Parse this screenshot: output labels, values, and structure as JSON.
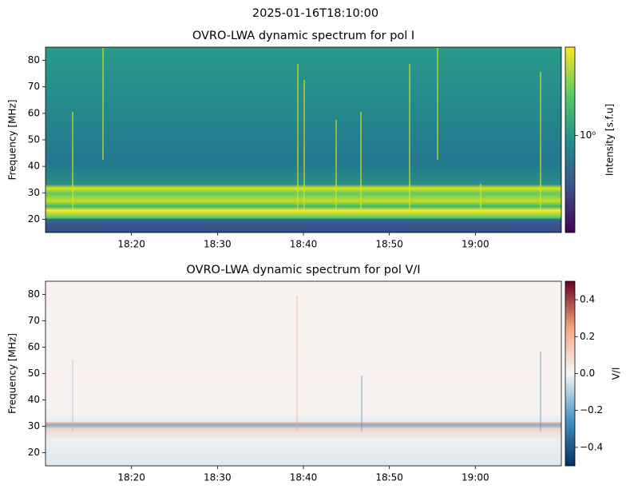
{
  "title": "2025-01-16T18:10:00",
  "chart_data": [
    {
      "type": "heatmap",
      "title": "OVRO-LWA dynamic spectrum for pol I",
      "ylabel": "Frequency [MHz]",
      "xlim": [
        "18:10",
        "19:10"
      ],
      "xticks": [
        "18:20",
        "18:30",
        "18:40",
        "18:50",
        "19:00"
      ],
      "ylim": [
        15,
        85
      ],
      "yticks": [
        20,
        30,
        40,
        50,
        60,
        70,
        80
      ],
      "colorbar": {
        "label": "Intensity [s.f.u]",
        "scale": "log",
        "lim": [
          0.3,
          3
        ],
        "ticks": [
          {
            "value": 1,
            "label": "10⁰"
          }
        ],
        "colormap": [
          "#440154",
          "#3b528b",
          "#21918c",
          "#5ec962",
          "#fde725"
        ]
      }
    },
    {
      "type": "heatmap",
      "title": "OVRO-LWA dynamic spectrum for pol V/I",
      "ylabel": "Frequency [MHz]",
      "xlim": [
        "18:10",
        "19:10"
      ],
      "xticks": [
        "18:20",
        "18:30",
        "18:40",
        "18:50",
        "19:00"
      ],
      "ylim": [
        15,
        85
      ],
      "yticks": [
        20,
        30,
        40,
        50,
        60,
        70,
        80
      ],
      "colorbar": {
        "label": "V/I",
        "scale": "linear",
        "lim": [
          -0.5,
          0.5
        ],
        "ticks": [
          0.4,
          0.2,
          {
            "value": 0,
            "label": "0.0"
          },
          {
            "value": -0.2,
            "label": "−0.2"
          },
          {
            "value": -0.4,
            "label": "−0.4"
          }
        ],
        "colormap": [
          "#053061",
          "#4393c3",
          "#f7f7f7",
          "#f4a582",
          "#67001f"
        ]
      }
    }
  ]
}
